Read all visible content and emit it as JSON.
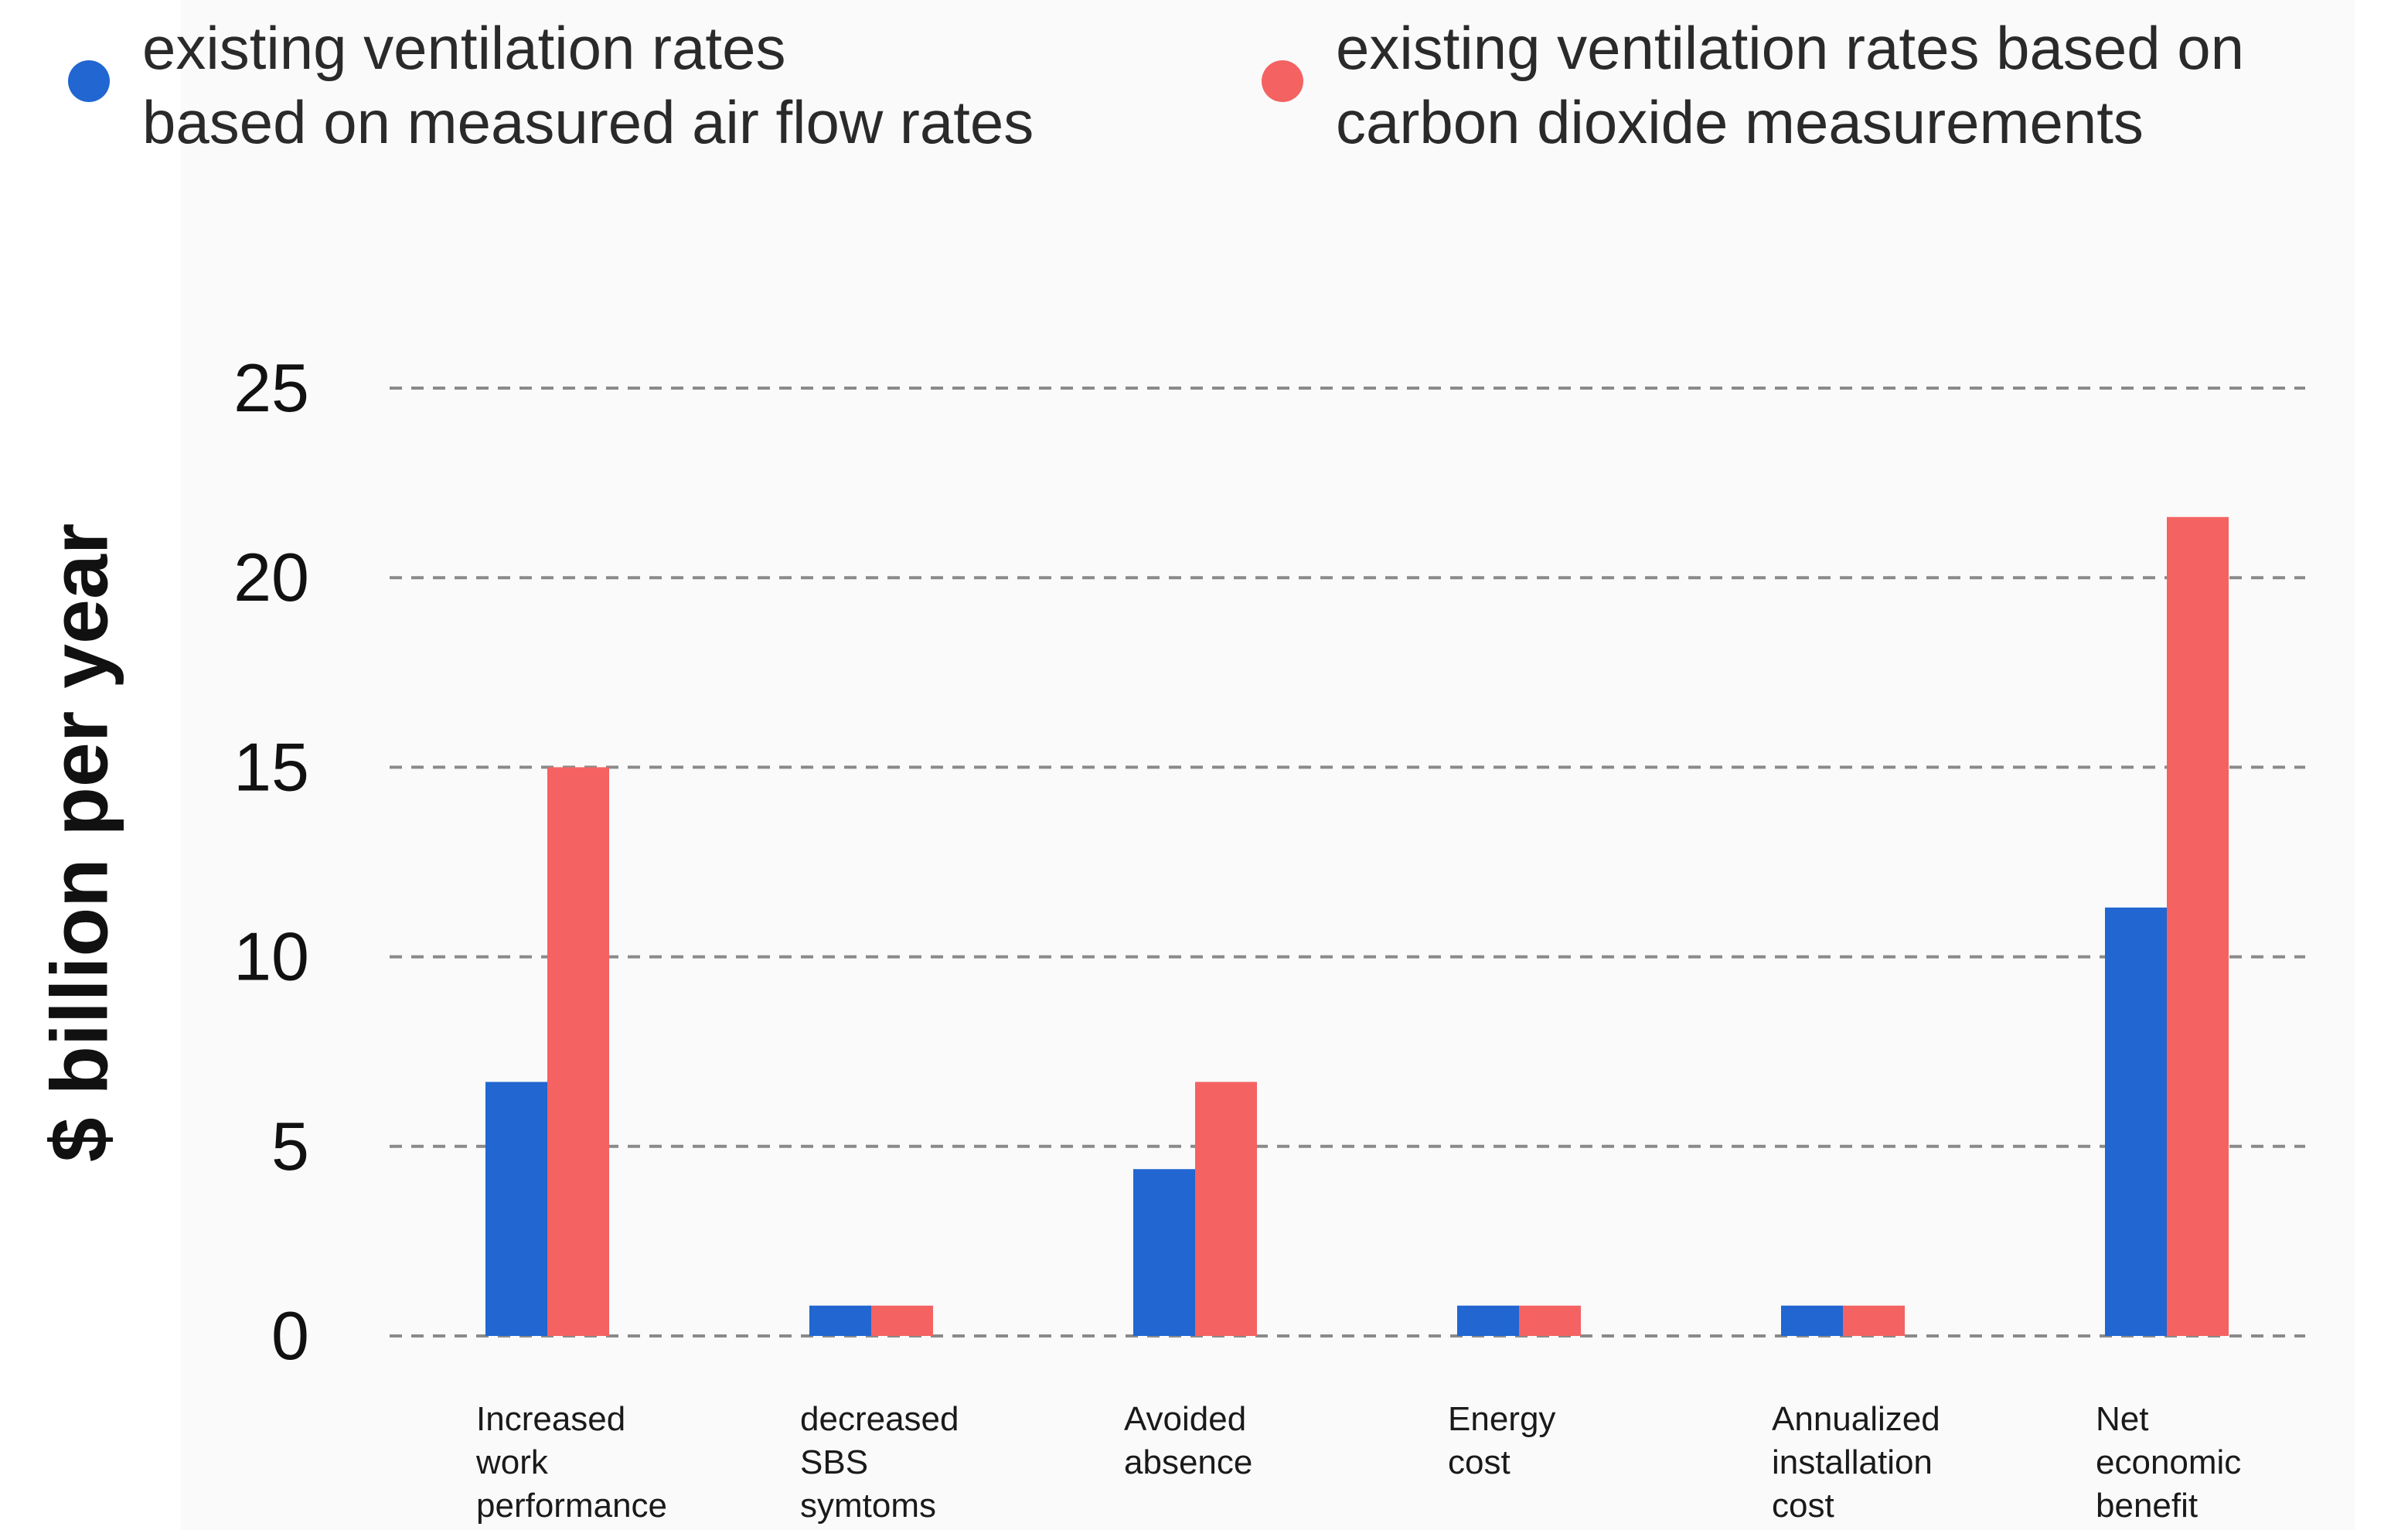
{
  "chart_data": {
    "type": "bar",
    "title": "",
    "xlabel": "",
    "ylabel": "$ billion per year",
    "ylim": [
      0,
      25
    ],
    "yticks": [
      0,
      5,
      10,
      15,
      20,
      25
    ],
    "grid": true,
    "legend_position": "top",
    "categories": [
      "Increased\nwork\nperformance",
      "decreased\nSBS\nsymtoms",
      "Avoided\nabsence",
      "Energy\ncost",
      "Annualized\ninstallation\ncost",
      "Net\neconomic\nbenefit"
    ],
    "series": [
      {
        "name": "existing ventilation rates\nbased on measured air flow rates",
        "color": "#2166d1",
        "values": [
          6.7,
          0.8,
          4.4,
          0.8,
          0.8,
          11.3
        ]
      },
      {
        "name": "existing ventilation rates based on\ncarbon dioxide measurements",
        "color": "#f46262",
        "values": [
          15.0,
          0.8,
          6.7,
          0.8,
          0.8,
          21.6
        ]
      }
    ]
  }
}
